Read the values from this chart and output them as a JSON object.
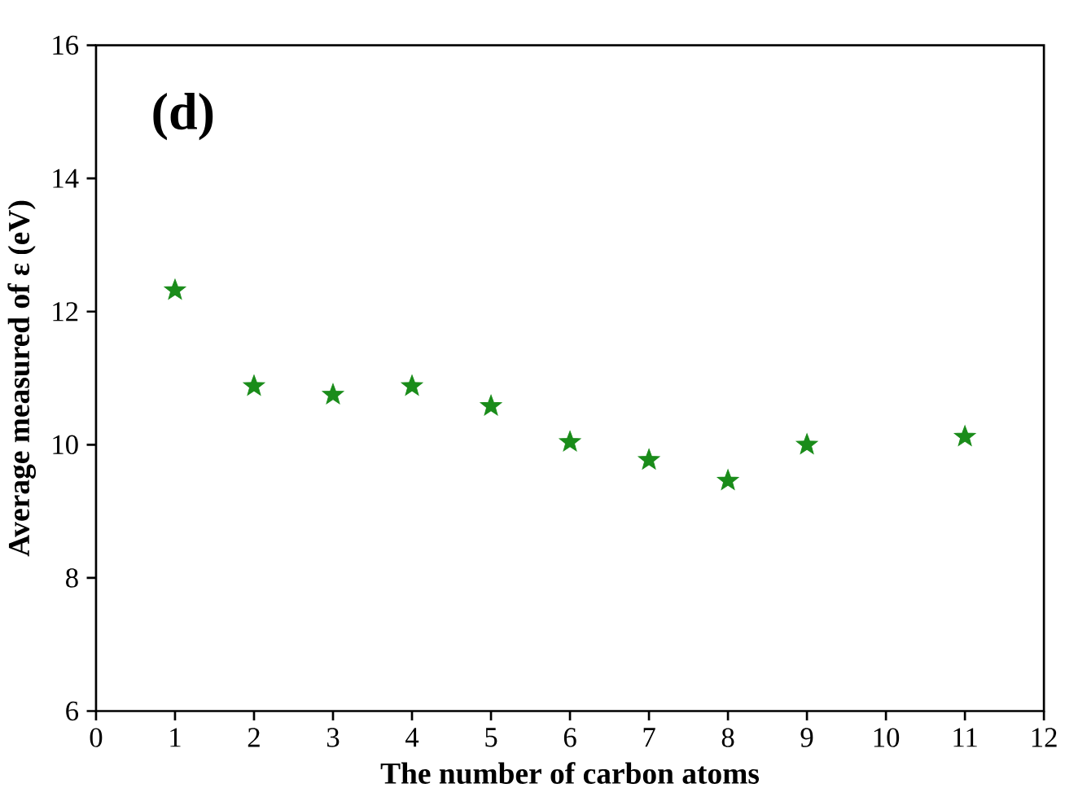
{
  "chart_data": {
    "type": "scatter",
    "xlabel": "The number of carbon atoms",
    "ylabel": "Average measured of ε (eV)",
    "annotations": [
      "(d)"
    ],
    "x": [
      1,
      2,
      3,
      4,
      5,
      6,
      7,
      8,
      9,
      11
    ],
    "series": [
      {
        "color": "#1a8c1a",
        "values": [
          12.32,
          10.88,
          10.75,
          10.88,
          10.58,
          10.04,
          9.77,
          9.46,
          10.0,
          10.12
        ]
      }
    ],
    "xlim": [
      0,
      12
    ],
    "xticks": [
      0,
      1,
      2,
      3,
      4,
      5,
      6,
      7,
      8,
      9,
      10,
      11,
      12
    ],
    "ylim": [
      6,
      16
    ],
    "yticks": [
      6,
      8,
      10,
      12,
      14,
      16
    ],
    "marker": "star",
    "grid": false
  }
}
